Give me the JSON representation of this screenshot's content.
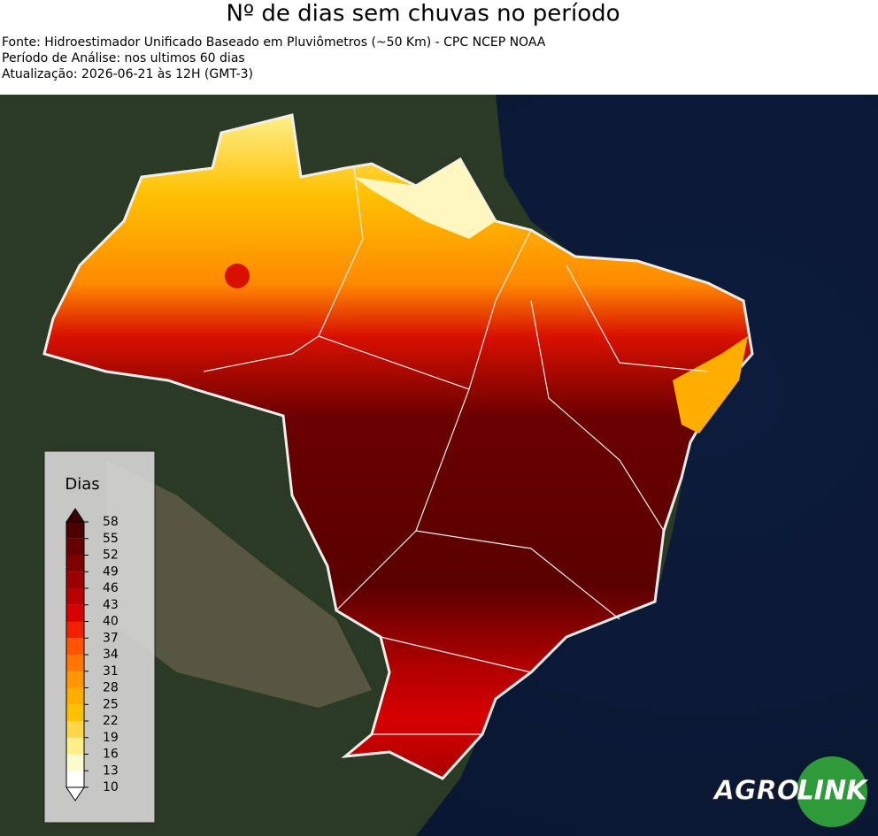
{
  "header": {
    "title": "Nº de dias sem chuvas no período",
    "lines": [
      "Fonte: Hidroestimador Unificado Baseado em Pluviômetros (~50 Km) - CPC NCEP NOAA",
      "Período de Análise: nos ultimos 60 dias",
      "Atualização: 2026-06-21 às 12H (GMT-3)"
    ]
  },
  "legend": {
    "title": "Dias",
    "lim": [
      10,
      58
    ],
    "ticks": [
      10,
      13,
      16,
      19,
      22,
      25,
      28,
      31,
      34,
      37,
      40,
      43,
      46,
      49,
      52,
      55,
      58
    ],
    "colors": [
      "#ffffff",
      "#fffbd0",
      "#ffef8a",
      "#ffd54a",
      "#ffc000",
      "#ffae00",
      "#ff9500",
      "#ff7700",
      "#ff5500",
      "#f02000",
      "#d80000",
      "#b80000",
      "#9a0000",
      "#7e0000",
      "#650000",
      "#4d0000"
    ],
    "cap_colors": [
      "#ffffff",
      "#3a0000"
    ]
  },
  "logo": {
    "left": "AGRO",
    "right": "LINK"
  }
}
